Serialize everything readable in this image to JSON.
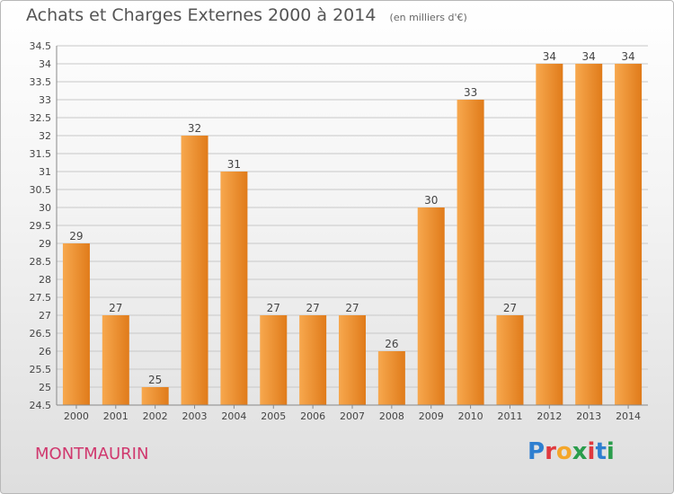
{
  "header": {
    "title": "Achats et Charges Externes 2000 à 2014",
    "subtitle": "(en milliers d'€)"
  },
  "footer": {
    "commune": "MONTMAURIN",
    "brand": "Proxiti",
    "brand_letters": [
      {
        "char": "P",
        "color": "#2f7fd0"
      },
      {
        "char": "r",
        "color": "#e0393e"
      },
      {
        "char": "o",
        "color": "#f4a62a"
      },
      {
        "char": "x",
        "color": "#2a9d4c"
      },
      {
        "char": "i",
        "color": "#e0393e"
      },
      {
        "char": "t",
        "color": "#2f7fd0"
      },
      {
        "char": "i",
        "color": "#2a9d4c"
      }
    ]
  },
  "colors": {
    "bar_light": "#f7a84e",
    "bar_dark": "#e07b1a",
    "grid": "#c8c8c8",
    "axis": "#888888",
    "commune": "#d0386e"
  },
  "chart_data": {
    "type": "bar",
    "categories": [
      "2000",
      "2001",
      "2002",
      "2003",
      "2004",
      "2005",
      "2006",
      "2007",
      "2008",
      "2009",
      "2010",
      "2011",
      "2012",
      "2013",
      "2014"
    ],
    "values": [
      29,
      27,
      25,
      32,
      31,
      27,
      27,
      27,
      26,
      30,
      33,
      27,
      34,
      34,
      34
    ],
    "ylim": [
      24.5,
      34.5
    ],
    "yticks": [
      "24.5",
      "25",
      "25.5",
      "26",
      "26.5",
      "27",
      "27.5",
      "28",
      "28.5",
      "29",
      "29.5",
      "30",
      "30.5",
      "31",
      "31.5",
      "32",
      "32.5",
      "33",
      "33.5",
      "34",
      "34.5"
    ],
    "title": "Achats et Charges Externes 2000 à 2014",
    "xlabel": "",
    "ylabel": "",
    "grid": true
  }
}
